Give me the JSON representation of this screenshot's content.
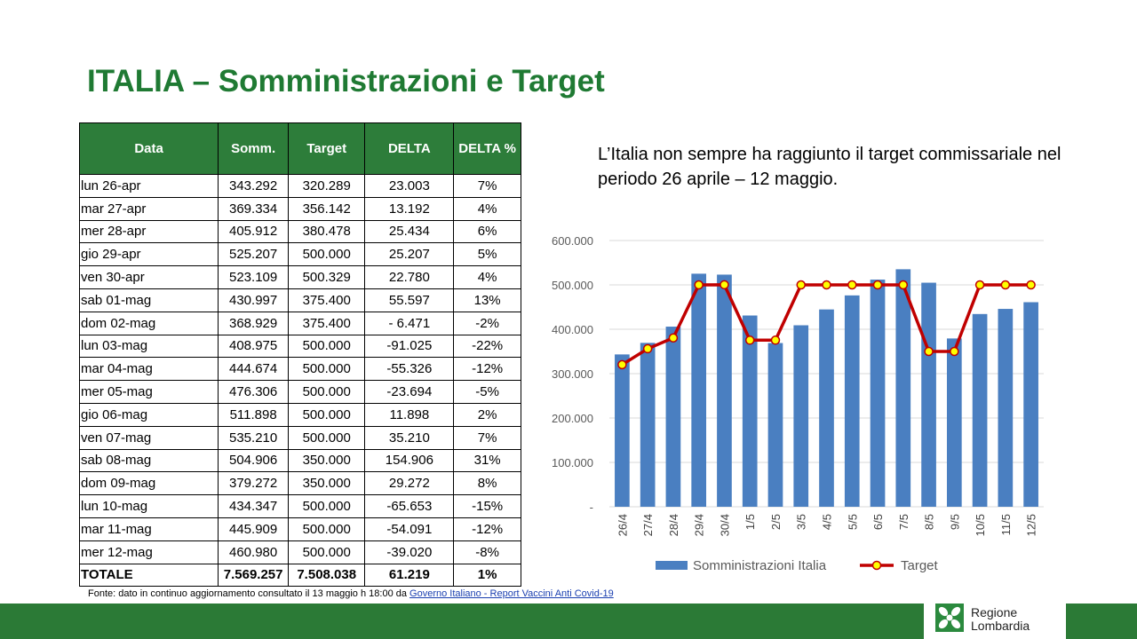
{
  "slide": {
    "title": "ITALIA – Somministrazioni e Target",
    "comment": "L’Italia non sempre ha raggiunto il target commissariale nel periodo 26 aprile – 12 maggio.",
    "source_prefix": "Fonte: dato in continuo aggiornamento consultato il 13 maggio h 18:00 da ",
    "source_link": "Governo Italiano - Report Vaccini Anti Covid-19",
    "logo_line1": "Regione",
    "logo_line2": "Lombardia"
  },
  "table": {
    "headers": [
      "Data",
      "Somm.",
      "Target",
      "DELTA",
      "DELTA %"
    ],
    "rows": [
      [
        "lun 26-apr",
        "343.292",
        "320.289",
        "23.003",
        "7%"
      ],
      [
        "mar 27-apr",
        "369.334",
        "356.142",
        "13.192",
        "4%"
      ],
      [
        "mer 28-apr",
        "405.912",
        "380.478",
        "25.434",
        "6%"
      ],
      [
        "gio 29-apr",
        "525.207",
        "500.000",
        "25.207",
        "5%"
      ],
      [
        "ven 30-apr",
        "523.109",
        "500.329",
        "22.780",
        "4%"
      ],
      [
        "sab 01-mag",
        "430.997",
        "375.400",
        "55.597",
        "13%"
      ],
      [
        "dom 02-mag",
        "368.929",
        "375.400",
        "-  6.471",
        "-2%"
      ],
      [
        "lun 03-mag",
        "408.975",
        "500.000",
        "-91.025",
        "-22%"
      ],
      [
        "mar 04-mag",
        "444.674",
        "500.000",
        "-55.326",
        "-12%"
      ],
      [
        "mer 05-mag",
        "476.306",
        "500.000",
        "-23.694",
        "-5%"
      ],
      [
        "gio 06-mag",
        "511.898",
        "500.000",
        "11.898",
        "2%"
      ],
      [
        "ven 07-mag",
        "535.210",
        "500.000",
        "35.210",
        "7%"
      ],
      [
        "sab 08-mag",
        "504.906",
        "350.000",
        "154.906",
        "31%"
      ],
      [
        "dom 09-mag",
        "379.272",
        "350.000",
        "29.272",
        "8%"
      ],
      [
        "lun 10-mag",
        "434.347",
        "500.000",
        "-65.653",
        "-15%"
      ],
      [
        "mar 11-mag",
        "445.909",
        "500.000",
        "-54.091",
        "-12%"
      ],
      [
        "mer 12-mag",
        "460.980",
        "500.000",
        "-39.020",
        "-8%"
      ]
    ],
    "total": [
      "TOTALE",
      "7.569.257",
      "7.508.038",
      "61.219",
      "1%"
    ]
  },
  "chart_data": {
    "type": "bar",
    "categories": [
      "26/4",
      "27/4",
      "28/4",
      "29/4",
      "30/4",
      "1/5",
      "2/5",
      "3/5",
      "4/5",
      "5/5",
      "6/5",
      "7/5",
      "8/5",
      "9/5",
      "10/5",
      "11/5",
      "12/5"
    ],
    "series": [
      {
        "name": "Somministrazioni Italia",
        "type": "bar",
        "color": "#4a7fc1",
        "values": [
          343292,
          369334,
          405912,
          525207,
          523109,
          430997,
          368929,
          408975,
          444674,
          476306,
          511898,
          535210,
          504906,
          379272,
          434347,
          445909,
          460980
        ]
      },
      {
        "name": "Target",
        "type": "line",
        "color": "#c00000",
        "marker_color": "#ffff00",
        "values": [
          320289,
          356142,
          380478,
          500000,
          500329,
          375400,
          375400,
          500000,
          500000,
          500000,
          500000,
          500000,
          350000,
          350000,
          500000,
          500000,
          500000
        ]
      }
    ],
    "ylim": [
      0,
      600000
    ],
    "yticks": [
      "-",
      "100.000",
      "200.000",
      "300.000",
      "400.000",
      "500.000",
      "600.000"
    ],
    "grid": true,
    "legend": "bottom"
  }
}
